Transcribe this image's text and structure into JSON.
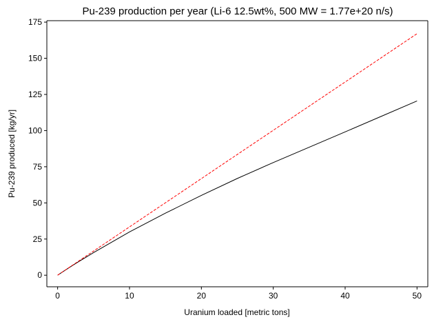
{
  "chart_data": {
    "type": "line",
    "title": "Pu-239 production per year (Li-6 12.5wt%, 500 MW = 1.77e+20 n/s)",
    "xlabel": "Uranium loaded [metric tons]",
    "ylabel": "Pu-239 produced [kg/yr]",
    "xlim": [
      -1.5,
      51.5
    ],
    "ylim": [
      -8,
      176
    ],
    "xticks": [
      0,
      10,
      20,
      30,
      40,
      50
    ],
    "yticks": [
      0,
      25,
      50,
      75,
      100,
      125,
      150,
      175
    ],
    "grid": false,
    "legend": "none",
    "series": [
      {
        "color": "#000000",
        "style": "solid",
        "x": [
          0,
          1,
          2,
          3,
          4,
          5,
          10,
          15,
          20,
          25,
          30,
          35,
          40,
          45,
          50
        ],
        "y": [
          0,
          3.3,
          6.5,
          9.6,
          12.6,
          15.6,
          29.9,
          42.9,
          55.2,
          66.9,
          77.9,
          88.5,
          99.1,
          109.8,
          120.5
        ]
      },
      {
        "color": "#ff0000",
        "style": "dashed",
        "x": [
          0,
          5,
          10,
          15,
          20,
          25,
          30,
          35,
          40,
          45,
          50
        ],
        "y": [
          0,
          16.7,
          33.4,
          50.1,
          66.8,
          83.5,
          100.2,
          116.9,
          133.6,
          150.3,
          167.0
        ]
      }
    ]
  }
}
